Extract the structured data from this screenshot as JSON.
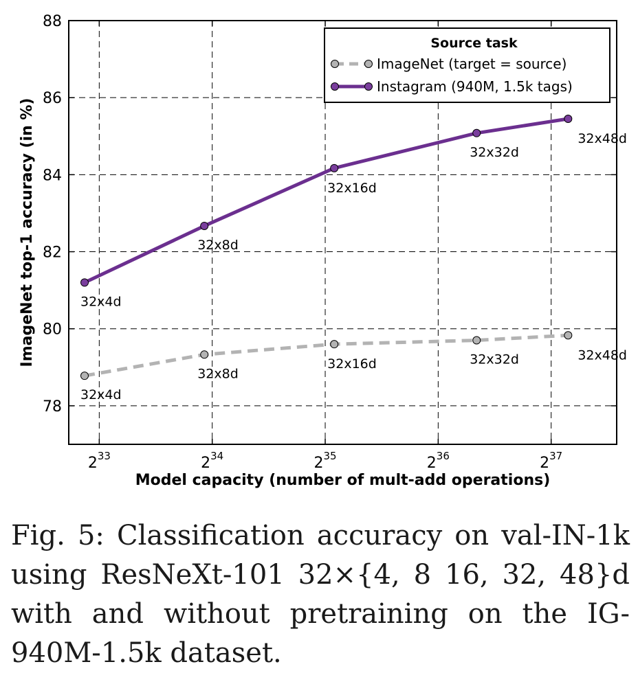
{
  "chart_data": {
    "type": "line",
    "xlabel": "Model capacity (number of mult-add operations)",
    "ylabel": "ImageNet top-1 accuracy (in %)",
    "x_scale": "log2",
    "xlim_log2": [
      32.73,
      37.58
    ],
    "ylim": [
      77,
      88
    ],
    "x_ticks": [
      {
        "base": "2",
        "exp": "33",
        "log2": 33
      },
      {
        "base": "2",
        "exp": "34",
        "log2": 34
      },
      {
        "base": "2",
        "exp": "35",
        "log2": 35
      },
      {
        "base": "2",
        "exp": "36",
        "log2": 36
      },
      {
        "base": "2",
        "exp": "37",
        "log2": 37
      }
    ],
    "y_ticks": [
      78,
      80,
      82,
      84,
      86,
      88
    ],
    "y_tick_labels": [
      "78",
      "80",
      "82",
      "84",
      "86",
      "88"
    ],
    "grid": true,
    "legend": {
      "title": "Source task",
      "position": "top-right"
    },
    "series": [
      {
        "name": "ImageNet (target = source)",
        "color": "#b3b3b3",
        "marker_color": "#b3b3b3",
        "style": "dashed",
        "x_log2": [
          32.87,
          33.93,
          35.08,
          36.34,
          37.15
        ],
        "values": [
          78.78,
          79.33,
          79.6,
          79.7,
          79.83
        ],
        "labels": [
          "32x4d",
          "32x8d",
          "32x16d",
          "32x32d",
          "32x48d"
        ]
      },
      {
        "name": "Instagram (940M, 1.5k tags)",
        "color": "#6b2f8f",
        "marker_color": "#7a3e9d",
        "style": "solid",
        "x_log2": [
          32.87,
          33.93,
          35.08,
          36.34,
          37.15
        ],
        "values": [
          81.2,
          82.67,
          84.17,
          85.08,
          85.45
        ],
        "labels": [
          "32x4d",
          "32x8d",
          "32x16d",
          "32x32d",
          "32x48d"
        ]
      }
    ]
  },
  "caption": {
    "lines": [
      "Fig. 5: Classification accuracy on val-IN-1k",
      "using ResNeXt-101 32×{4, 8 16, 32, 48}d",
      "with and without pretraining on the IG-",
      "940M-1.5k dataset."
    ]
  }
}
